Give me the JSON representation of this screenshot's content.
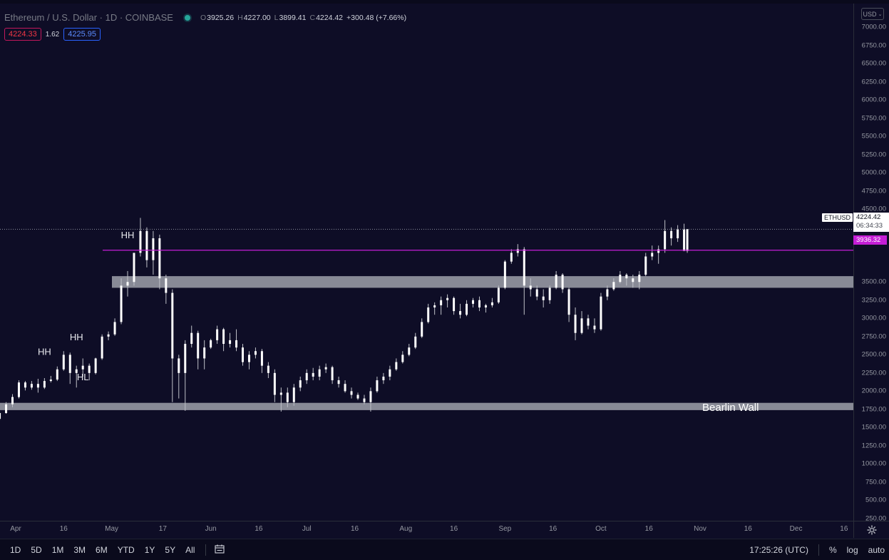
{
  "header": {
    "title": "Ethereum / U.S. Dollar · 1D · COINBASE",
    "ohlc": [
      {
        "key": "O",
        "value": "3925.26"
      },
      {
        "key": "H",
        "value": "4227.00"
      },
      {
        "key": "L",
        "value": "3899.41"
      },
      {
        "key": "C",
        "value": "4224.42"
      }
    ],
    "change": "+300.48 (+7.66%)",
    "bid": "4224.33",
    "spread": "1.62",
    "ask": "4225.95"
  },
  "currency_button": "USD",
  "price_scale": {
    "ticks": [
      "7000.00",
      "6750.00",
      "6500.00",
      "6250.00",
      "6000.00",
      "5750.00",
      "5500.00",
      "5250.00",
      "5000.00",
      "4750.00",
      "4500.00",
      "3250.00",
      "3500.00",
      "3000.00",
      "2750.00",
      "2500.00",
      "2250.00",
      "2000.00",
      "1750.00",
      "1500.00",
      "1250.00",
      "1000.00",
      "750.00",
      "500.00",
      "250.00"
    ],
    "symbol_tag": "ETHUSD",
    "last_price": "4224.42",
    "countdown": "06:34:33",
    "line_price": "3936.32"
  },
  "time_scale": {
    "ticks": [
      "Apr",
      "16",
      "May",
      "17",
      "Jun",
      "16",
      "Jul",
      "16",
      "Aug",
      "16",
      "Sep",
      "16",
      "Oct",
      "16",
      "Nov",
      "16",
      "Dec",
      "16"
    ]
  },
  "annotations": {
    "labels": [
      "HH",
      "HH",
      "HH",
      "HL"
    ],
    "bearlin_wall": "Bearlin Wall"
  },
  "bottom_bar": {
    "timeframes": [
      "1D",
      "5D",
      "1M",
      "3M",
      "6M",
      "YTD",
      "1Y",
      "5Y",
      "All"
    ],
    "clock": "17:25:26 (UTC)",
    "percent": "%",
    "log": "log",
    "auto": "auto"
  },
  "colors": {
    "background": "#0e0d26",
    "candle": "#ffffff",
    "horizontal_line": "#c51ed6",
    "zone": "#9a9ca6",
    "last_price_line": "#b2b5be"
  },
  "icons": {
    "date_range": "calendar-range-icon",
    "settings": "gear-icon"
  },
  "chart_data": {
    "type": "candlestick",
    "symbol": "ETHUSD",
    "interval": "1D",
    "ylim": [
      250,
      7000
    ],
    "x_range": [
      "2021-03-26",
      "2021-12-24"
    ],
    "candles": [
      {
        "date": "2021-03-27",
        "o": 1620,
        "h": 1720,
        "l": 1600,
        "c": 1700
      },
      {
        "date": "2021-03-29",
        "o": 1700,
        "h": 1850,
        "l": 1690,
        "c": 1820
      },
      {
        "date": "2021-03-31",
        "o": 1820,
        "h": 1960,
        "l": 1780,
        "c": 1920
      },
      {
        "date": "2021-04-02",
        "o": 1920,
        "h": 2150,
        "l": 1900,
        "c": 2120
      },
      {
        "date": "2021-04-04",
        "o": 2120,
        "h": 2140,
        "l": 2010,
        "c": 2050
      },
      {
        "date": "2021-04-06",
        "o": 2050,
        "h": 2140,
        "l": 2020,
        "c": 2100
      },
      {
        "date": "2021-04-08",
        "o": 2100,
        "h": 2170,
        "l": 1980,
        "c": 2050
      },
      {
        "date": "2021-04-10",
        "o": 2050,
        "h": 2180,
        "l": 2030,
        "c": 2140
      },
      {
        "date": "2021-04-12",
        "o": 2140,
        "h": 2210,
        "l": 2120,
        "c": 2160
      },
      {
        "date": "2021-04-14",
        "o": 2160,
        "h": 2340,
        "l": 2140,
        "c": 2300
      },
      {
        "date": "2021-04-16",
        "o": 2300,
        "h": 2550,
        "l": 2280,
        "c": 2500
      },
      {
        "date": "2021-04-18",
        "o": 2500,
        "h": 2530,
        "l": 2100,
        "c": 2250
      },
      {
        "date": "2021-04-20",
        "o": 2250,
        "h": 2350,
        "l": 2050,
        "c": 2300
      },
      {
        "date": "2021-04-22",
        "o": 2300,
        "h": 2450,
        "l": 2200,
        "c": 2350
      },
      {
        "date": "2021-04-24",
        "o": 2350,
        "h": 2380,
        "l": 2150,
        "c": 2250
      },
      {
        "date": "2021-04-26",
        "o": 2250,
        "h": 2460,
        "l": 2230,
        "c": 2450
      },
      {
        "date": "2021-04-28",
        "o": 2450,
        "h": 2780,
        "l": 2430,
        "c": 2750
      },
      {
        "date": "2021-04-30",
        "o": 2750,
        "h": 2820,
        "l": 2700,
        "c": 2780
      },
      {
        "date": "2021-05-02",
        "o": 2780,
        "h": 3000,
        "l": 2760,
        "c": 2950
      },
      {
        "date": "2021-05-04",
        "o": 2950,
        "h": 3550,
        "l": 2920,
        "c": 3450
      },
      {
        "date": "2021-05-06",
        "o": 3450,
        "h": 3650,
        "l": 3300,
        "c": 3500
      },
      {
        "date": "2021-05-08",
        "o": 3500,
        "h": 3900,
        "l": 3450,
        "c": 3900
      },
      {
        "date": "2021-05-10",
        "o": 3900,
        "h": 4380,
        "l": 3850,
        "c": 4200
      },
      {
        "date": "2021-05-12",
        "o": 4200,
        "h": 4250,
        "l": 3700,
        "c": 3800
      },
      {
        "date": "2021-05-14",
        "o": 3800,
        "h": 4200,
        "l": 3600,
        "c": 4100
      },
      {
        "date": "2021-05-16",
        "o": 4100,
        "h": 4150,
        "l": 3400,
        "c": 3550
      },
      {
        "date": "2021-05-18",
        "o": 3550,
        "h": 3600,
        "l": 3200,
        "c": 3350
      },
      {
        "date": "2021-05-20",
        "o": 3350,
        "h": 3400,
        "l": 1850,
        "c": 2450
      },
      {
        "date": "2021-05-22",
        "o": 2450,
        "h": 2500,
        "l": 1900,
        "c": 2250
      },
      {
        "date": "2021-05-24",
        "o": 2250,
        "h": 2700,
        "l": 1730,
        "c": 2650
      },
      {
        "date": "2021-05-26",
        "o": 2650,
        "h": 2900,
        "l": 2600,
        "c": 2800
      },
      {
        "date": "2021-05-28",
        "o": 2800,
        "h": 2830,
        "l": 2300,
        "c": 2450
      },
      {
        "date": "2021-05-30",
        "o": 2450,
        "h": 2700,
        "l": 2300,
        "c": 2600
      },
      {
        "date": "2021-06-01",
        "o": 2600,
        "h": 2720,
        "l": 2580,
        "c": 2700
      },
      {
        "date": "2021-06-03",
        "o": 2700,
        "h": 2900,
        "l": 2650,
        "c": 2850
      },
      {
        "date": "2021-06-05",
        "o": 2850,
        "h": 2870,
        "l": 2550,
        "c": 2650
      },
      {
        "date": "2021-06-07",
        "o": 2650,
        "h": 2800,
        "l": 2600,
        "c": 2700
      },
      {
        "date": "2021-06-09",
        "o": 2700,
        "h": 2850,
        "l": 2550,
        "c": 2600
      },
      {
        "date": "2021-06-11",
        "o": 2600,
        "h": 2650,
        "l": 2350,
        "c": 2400
      },
      {
        "date": "2021-06-13",
        "o": 2400,
        "h": 2550,
        "l": 2300,
        "c": 2500
      },
      {
        "date": "2021-06-15",
        "o": 2500,
        "h": 2600,
        "l": 2450,
        "c": 2550
      },
      {
        "date": "2021-06-17",
        "o": 2550,
        "h": 2580,
        "l": 2250,
        "c": 2350
      },
      {
        "date": "2021-06-19",
        "o": 2350,
        "h": 2400,
        "l": 2180,
        "c": 2250
      },
      {
        "date": "2021-06-21",
        "o": 2250,
        "h": 2300,
        "l": 1850,
        "c": 1950
      },
      {
        "date": "2021-06-23",
        "o": 1950,
        "h": 2050,
        "l": 1720,
        "c": 1980
      },
      {
        "date": "2021-06-25",
        "o": 1980,
        "h": 2050,
        "l": 1780,
        "c": 1850
      },
      {
        "date": "2021-06-27",
        "o": 1850,
        "h": 2100,
        "l": 1800,
        "c": 2050
      },
      {
        "date": "2021-06-29",
        "o": 2050,
        "h": 2200,
        "l": 2000,
        "c": 2150
      },
      {
        "date": "2021-07-01",
        "o": 2150,
        "h": 2300,
        "l": 2100,
        "c": 2250
      },
      {
        "date": "2021-07-03",
        "o": 2250,
        "h": 2320,
        "l": 2150,
        "c": 2200
      },
      {
        "date": "2021-07-05",
        "o": 2200,
        "h": 2350,
        "l": 2150,
        "c": 2300
      },
      {
        "date": "2021-07-07",
        "o": 2300,
        "h": 2380,
        "l": 2250,
        "c": 2330
      },
      {
        "date": "2021-07-09",
        "o": 2330,
        "h": 2350,
        "l": 2100,
        "c": 2150
      },
      {
        "date": "2021-07-11",
        "o": 2150,
        "h": 2200,
        "l": 2050,
        "c": 2100
      },
      {
        "date": "2021-07-13",
        "o": 2100,
        "h": 2150,
        "l": 1980,
        "c": 2000
      },
      {
        "date": "2021-07-15",
        "o": 2000,
        "h": 2050,
        "l": 1900,
        "c": 1950
      },
      {
        "date": "2021-07-17",
        "o": 1950,
        "h": 1980,
        "l": 1880,
        "c": 1900
      },
      {
        "date": "2021-07-19",
        "o": 1900,
        "h": 1950,
        "l": 1820,
        "c": 1850
      },
      {
        "date": "2021-07-21",
        "o": 1850,
        "h": 2050,
        "l": 1720,
        "c": 2000
      },
      {
        "date": "2021-07-23",
        "o": 2000,
        "h": 2200,
        "l": 1980,
        "c": 2150
      },
      {
        "date": "2021-07-25",
        "o": 2150,
        "h": 2250,
        "l": 2100,
        "c": 2200
      },
      {
        "date": "2021-07-27",
        "o": 2200,
        "h": 2350,
        "l": 2150,
        "c": 2300
      },
      {
        "date": "2021-07-29",
        "o": 2300,
        "h": 2450,
        "l": 2280,
        "c": 2400
      },
      {
        "date": "2021-07-31",
        "o": 2400,
        "h": 2550,
        "l": 2380,
        "c": 2500
      },
      {
        "date": "2021-08-02",
        "o": 2500,
        "h": 2650,
        "l": 2480,
        "c": 2600
      },
      {
        "date": "2021-08-04",
        "o": 2600,
        "h": 2800,
        "l": 2580,
        "c": 2750
      },
      {
        "date": "2021-08-06",
        "o": 2750,
        "h": 3000,
        "l": 2730,
        "c": 2950
      },
      {
        "date": "2021-08-08",
        "o": 2950,
        "h": 3200,
        "l": 2930,
        "c": 3150
      },
      {
        "date": "2021-08-10",
        "o": 3150,
        "h": 3220,
        "l": 3050,
        "c": 3180
      },
      {
        "date": "2021-08-12",
        "o": 3180,
        "h": 3300,
        "l": 3050,
        "c": 3250
      },
      {
        "date": "2021-08-14",
        "o": 3250,
        "h": 3330,
        "l": 3150,
        "c": 3280
      },
      {
        "date": "2021-08-16",
        "o": 3280,
        "h": 3300,
        "l": 3050,
        "c": 3100
      },
      {
        "date": "2021-08-18",
        "o": 3100,
        "h": 3200,
        "l": 3000,
        "c": 3050
      },
      {
        "date": "2021-08-20",
        "o": 3050,
        "h": 3250,
        "l": 3030,
        "c": 3200
      },
      {
        "date": "2021-08-22",
        "o": 3200,
        "h": 3280,
        "l": 3150,
        "c": 3250
      },
      {
        "date": "2021-08-24",
        "o": 3250,
        "h": 3300,
        "l": 3100,
        "c": 3150
      },
      {
        "date": "2021-08-26",
        "o": 3150,
        "h": 3200,
        "l": 3080,
        "c": 3180
      },
      {
        "date": "2021-08-28",
        "o": 3180,
        "h": 3280,
        "l": 3150,
        "c": 3220
      },
      {
        "date": "2021-08-30",
        "o": 3220,
        "h": 3450,
        "l": 3200,
        "c": 3420
      },
      {
        "date": "2021-09-01",
        "o": 3420,
        "h": 3800,
        "l": 3400,
        "c": 3780
      },
      {
        "date": "2021-09-03",
        "o": 3780,
        "h": 3950,
        "l": 3750,
        "c": 3900
      },
      {
        "date": "2021-09-05",
        "o": 3900,
        "h": 4020,
        "l": 3850,
        "c": 3950
      },
      {
        "date": "2021-09-07",
        "o": 3950,
        "h": 3980,
        "l": 3050,
        "c": 3450
      },
      {
        "date": "2021-09-09",
        "o": 3450,
        "h": 3550,
        "l": 3300,
        "c": 3400
      },
      {
        "date": "2021-09-11",
        "o": 3400,
        "h": 3450,
        "l": 3250,
        "c": 3300
      },
      {
        "date": "2021-09-13",
        "o": 3300,
        "h": 3400,
        "l": 3150,
        "c": 3250
      },
      {
        "date": "2021-09-15",
        "o": 3250,
        "h": 3450,
        "l": 3200,
        "c": 3420
      },
      {
        "date": "2021-09-17",
        "o": 3420,
        "h": 3650,
        "l": 3400,
        "c": 3600
      },
      {
        "date": "2021-09-19",
        "o": 3600,
        "h": 3620,
        "l": 3350,
        "c": 3400
      },
      {
        "date": "2021-09-21",
        "o": 3400,
        "h": 3420,
        "l": 2950,
        "c": 3050
      },
      {
        "date": "2021-09-23",
        "o": 3050,
        "h": 3150,
        "l": 2700,
        "c": 2800
      },
      {
        "date": "2021-09-25",
        "o": 2800,
        "h": 3100,
        "l": 2780,
        "c": 3000
      },
      {
        "date": "2021-09-27",
        "o": 3000,
        "h": 3050,
        "l": 2850,
        "c": 2900
      },
      {
        "date": "2021-09-29",
        "o": 2900,
        "h": 3000,
        "l": 2800,
        "c": 2850
      },
      {
        "date": "2021-10-01",
        "o": 2850,
        "h": 3350,
        "l": 2830,
        "c": 3300
      },
      {
        "date": "2021-10-03",
        "o": 3300,
        "h": 3450,
        "l": 3250,
        "c": 3400
      },
      {
        "date": "2021-10-05",
        "o": 3400,
        "h": 3550,
        "l": 3380,
        "c": 3500
      },
      {
        "date": "2021-10-07",
        "o": 3500,
        "h": 3650,
        "l": 3480,
        "c": 3600
      },
      {
        "date": "2021-10-09",
        "o": 3600,
        "h": 3620,
        "l": 3450,
        "c": 3550
      },
      {
        "date": "2021-10-11",
        "o": 3550,
        "h": 3600,
        "l": 3420,
        "c": 3500
      },
      {
        "date": "2021-10-13",
        "o": 3500,
        "h": 3650,
        "l": 3400,
        "c": 3600
      },
      {
        "date": "2021-10-15",
        "o": 3600,
        "h": 3900,
        "l": 3580,
        "c": 3850
      },
      {
        "date": "2021-10-17",
        "o": 3850,
        "h": 4000,
        "l": 3800,
        "c": 3900
      },
      {
        "date": "2021-10-19",
        "o": 3900,
        "h": 4000,
        "l": 3750,
        "c": 3950
      },
      {
        "date": "2021-10-21",
        "o": 3950,
        "h": 4350,
        "l": 3900,
        "c": 4200
      },
      {
        "date": "2021-10-23",
        "o": 4200,
        "h": 4250,
        "l": 4000,
        "c": 4100
      },
      {
        "date": "2021-10-25",
        "o": 4100,
        "h": 4280,
        "l": 4050,
        "c": 4220
      },
      {
        "date": "2021-10-27",
        "o": 4220,
        "h": 4300,
        "l": 3950,
        "c": 3925
      },
      {
        "date": "2021-10-28",
        "o": 3925.26,
        "h": 4227,
        "l": 3899.41,
        "c": 4224.42
      }
    ],
    "levels": [
      {
        "type": "horizontal_line",
        "price": 3936.32
      },
      {
        "type": "zone",
        "from": 3420,
        "to": 3580
      },
      {
        "type": "zone",
        "from": 1740,
        "to": 1840,
        "label": "Bearlin Wall"
      }
    ],
    "labels": [
      {
        "text": "HH",
        "date": "2021-05-06",
        "price": 4100
      },
      {
        "text": "HH",
        "date": "2021-04-10",
        "price": 2500
      },
      {
        "text": "HH",
        "date": "2021-04-20",
        "price": 2700
      },
      {
        "text": "HL",
        "date": "2021-04-22",
        "price": 2150
      }
    ],
    "last_price": 4224.42
  }
}
